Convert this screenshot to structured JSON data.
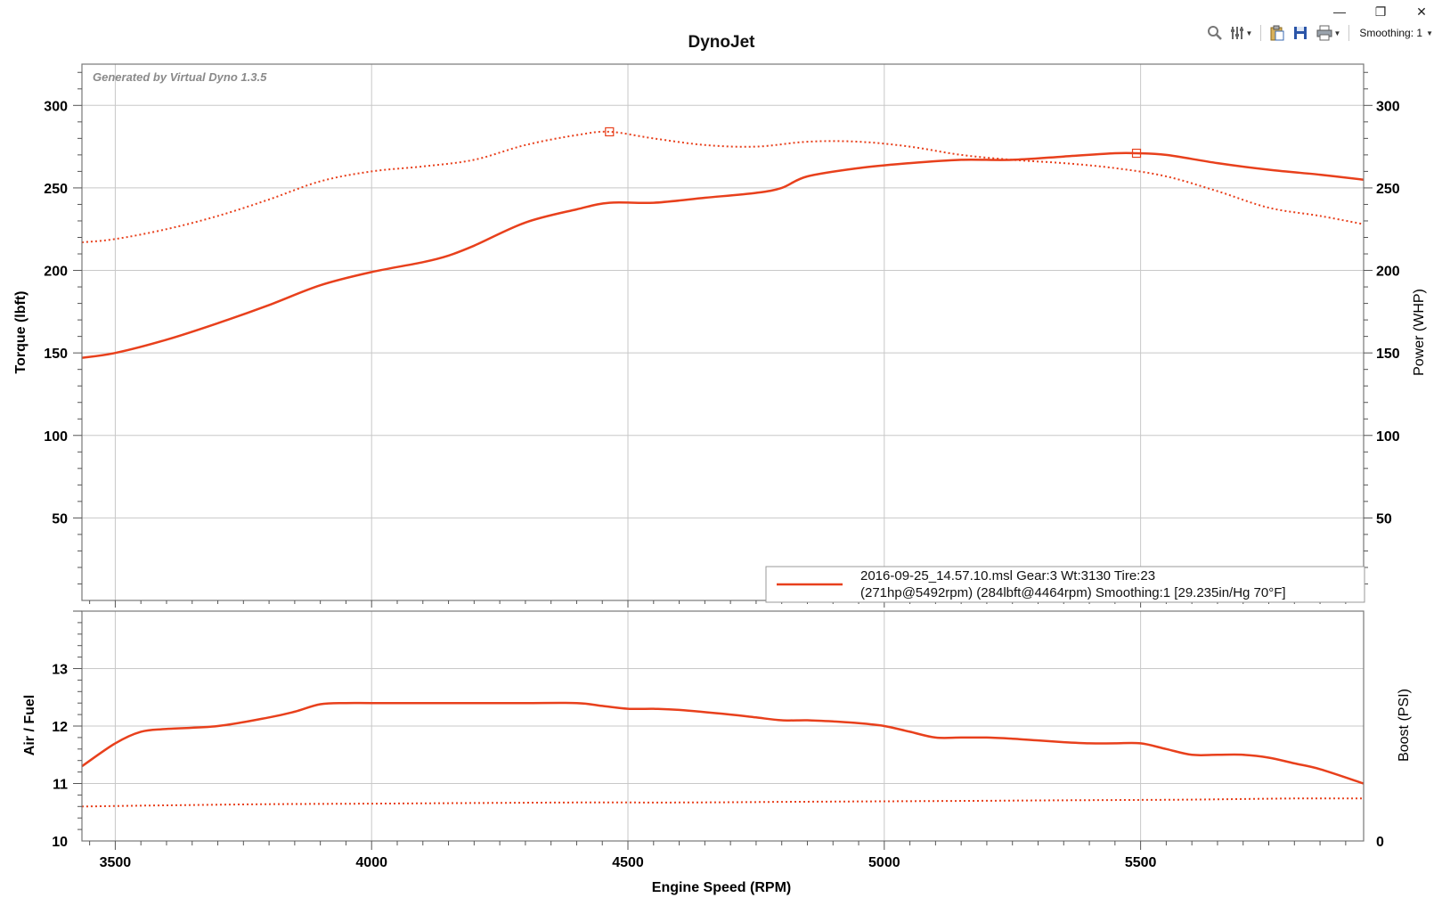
{
  "window": {
    "minimize_glyph": "—",
    "restore_glyph": "❐",
    "close_glyph": "✕"
  },
  "toolbar": {
    "zoom_icon": "zoom-icon",
    "settings_icon": "settings-icon",
    "clipboard_icon": "clipboard-icon",
    "save_icon": "save-icon",
    "print_icon": "print-icon",
    "smoothing_label": "Smoothing: 1"
  },
  "colors": {
    "series": "#e8401c",
    "grid": "#c8c8c8",
    "frame": "#777777",
    "watermark": "#8a8a8a"
  },
  "chart_data": [
    {
      "type": "line",
      "title": "DynoJet",
      "watermark": "Generated by Virtual Dyno 1.3.5",
      "xlabel": "Engine Speed (RPM)",
      "ylabel": "Torque (lbft)",
      "y2label": "Power (WHP)",
      "xlim": [
        3435,
        5935
      ],
      "ylim": [
        0,
        325
      ],
      "y2lim": [
        0,
        325
      ],
      "x_ticks": [
        3500,
        4000,
        4500,
        5000,
        5500
      ],
      "y_ticks": [
        50,
        100,
        150,
        200,
        250,
        300
      ],
      "y2_ticks": [
        50,
        100,
        150,
        200,
        250,
        300
      ],
      "grid": true,
      "legend": {
        "position": "bottom-right",
        "line1": "2016-09-25_14.57.10.msl Gear:3 Wt:3130 Tire:23",
        "line2": "(271hp@5492rpm) (284lbft@4464rpm) Smoothing:1 [29.235in/Hg 70°F]"
      },
      "series": [
        {
          "style": "dotted",
          "x": [
            3435,
            3500,
            3600,
            3700,
            3800,
            3900,
            4000,
            4100,
            4200,
            4300,
            4400,
            4464,
            4550,
            4650,
            4750,
            4850,
            4950,
            5050,
            5150,
            5250,
            5350,
            5450,
            5550,
            5650,
            5750,
            5850,
            5935
          ],
          "values": [
            217,
            219,
            225,
            233,
            243,
            254,
            260,
            263,
            267,
            276,
            282,
            284,
            280,
            276,
            275,
            278,
            278,
            275,
            270,
            267,
            265,
            262,
            257,
            248,
            238,
            233,
            228
          ],
          "peak": {
            "x": 4464,
            "y": 284
          }
        },
        {
          "style": "solid",
          "x": [
            3435,
            3500,
            3600,
            3700,
            3800,
            3900,
            4000,
            4100,
            4150,
            4200,
            4300,
            4400,
            4464,
            4550,
            4650,
            4750,
            4800,
            4850,
            4950,
            5050,
            5150,
            5250,
            5350,
            5450,
            5492,
            5550,
            5650,
            5750,
            5850,
            5935
          ],
          "values": [
            147,
            150,
            158,
            168,
            179,
            191,
            199,
            205,
            209,
            215,
            229,
            237,
            241,
            241,
            244,
            247,
            250,
            257,
            262,
            265,
            267,
            267,
            269,
            271,
            271,
            270,
            265,
            261,
            258,
            255
          ],
          "peak": {
            "x": 5492,
            "y": 271
          }
        }
      ]
    },
    {
      "type": "line",
      "ylabel": "Air / Fuel",
      "y2label": "Boost (PSI)",
      "xlim": [
        3435,
        5935
      ],
      "ylim": [
        10,
        14
      ],
      "x_ticks": [
        3500,
        4000,
        4500,
        5000,
        5500
      ],
      "y_ticks": [
        10,
        11,
        12,
        13
      ],
      "y2_ticks": [
        0
      ],
      "grid": true,
      "series": [
        {
          "style": "solid",
          "x": [
            3435,
            3500,
            3550,
            3600,
            3700,
            3800,
            3850,
            3900,
            3950,
            4000,
            4100,
            4200,
            4300,
            4400,
            4450,
            4500,
            4550,
            4600,
            4700,
            4750,
            4800,
            4850,
            4900,
            4950,
            5000,
            5050,
            5100,
            5150,
            5200,
            5250,
            5300,
            5350,
            5400,
            5450,
            5500,
            5550,
            5600,
            5650,
            5700,
            5750,
            5800,
            5850,
            5935
          ],
          "values": [
            11.3,
            11.7,
            11.9,
            11.95,
            12.0,
            12.15,
            12.25,
            12.38,
            12.4,
            12.4,
            12.4,
            12.4,
            12.4,
            12.4,
            12.35,
            12.3,
            12.3,
            12.28,
            12.2,
            12.15,
            12.1,
            12.1,
            12.08,
            12.05,
            12.0,
            11.9,
            11.8,
            11.8,
            11.8,
            11.78,
            11.75,
            11.72,
            11.7,
            11.7,
            11.7,
            11.6,
            11.5,
            11.5,
            11.5,
            11.45,
            11.35,
            11.25,
            11.0
          ]
        },
        {
          "style": "dotted",
          "x": [
            3435,
            3600,
            3800,
            4000,
            4200,
            4400,
            4600,
            4800,
            5000,
            5200,
            5400,
            5600,
            5800,
            5935
          ],
          "values": [
            10.6,
            10.62,
            10.64,
            10.65,
            10.66,
            10.67,
            10.67,
            10.68,
            10.69,
            10.7,
            10.71,
            10.72,
            10.74,
            10.74
          ]
        }
      ]
    }
  ]
}
